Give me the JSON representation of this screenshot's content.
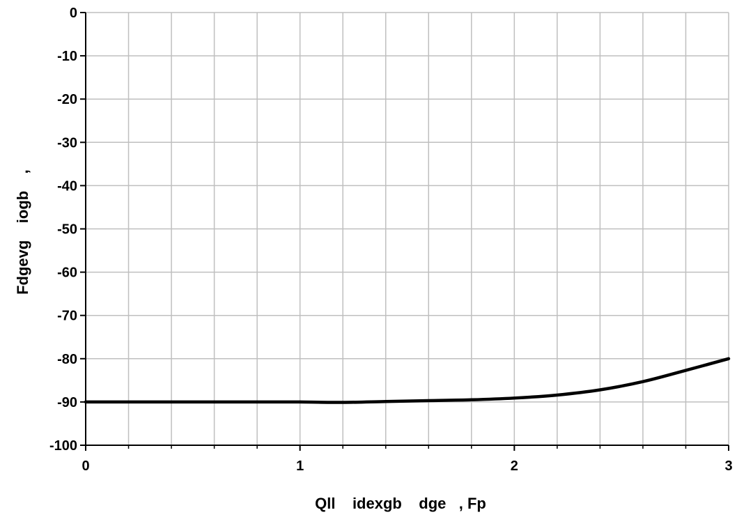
{
  "chart_data": {
    "type": "line",
    "title": "",
    "xlabel": "Qll    idexgb    dge   , Fp",
    "ylabel": "Fdgevg    iogb    , ",
    "xlim": [
      0,
      3
    ],
    "ylim": [
      -100,
      0
    ],
    "x_ticks": [
      "0",
      "1",
      "2",
      "3"
    ],
    "y_ticks": [
      "0",
      "-10",
      "-20",
      "-30",
      "-40",
      "-50",
      "-60",
      "-70",
      "-80",
      "-90",
      "-100"
    ],
    "x_minor_step": 0.2,
    "y_major_step": 10,
    "grid": true,
    "legend": "none",
    "series": [
      {
        "color": "#000000",
        "x": [
          0,
          0.2,
          0.4,
          0.6,
          0.8,
          1.0,
          1.2,
          1.4,
          1.6,
          1.8,
          2.0,
          2.2,
          2.4,
          2.6,
          2.8,
          3.0
        ],
        "y": [
          -90,
          -90,
          -90,
          -90,
          -90,
          -90,
          -90.1,
          -89.9,
          -89.7,
          -89.5,
          -89.1,
          -88.4,
          -87.2,
          -85.3,
          -82.7,
          -80
        ]
      }
    ],
    "colors": {
      "grid": "#bfbfbf",
      "axis": "#000000",
      "line": "#000000",
      "background": "#ffffff"
    }
  }
}
